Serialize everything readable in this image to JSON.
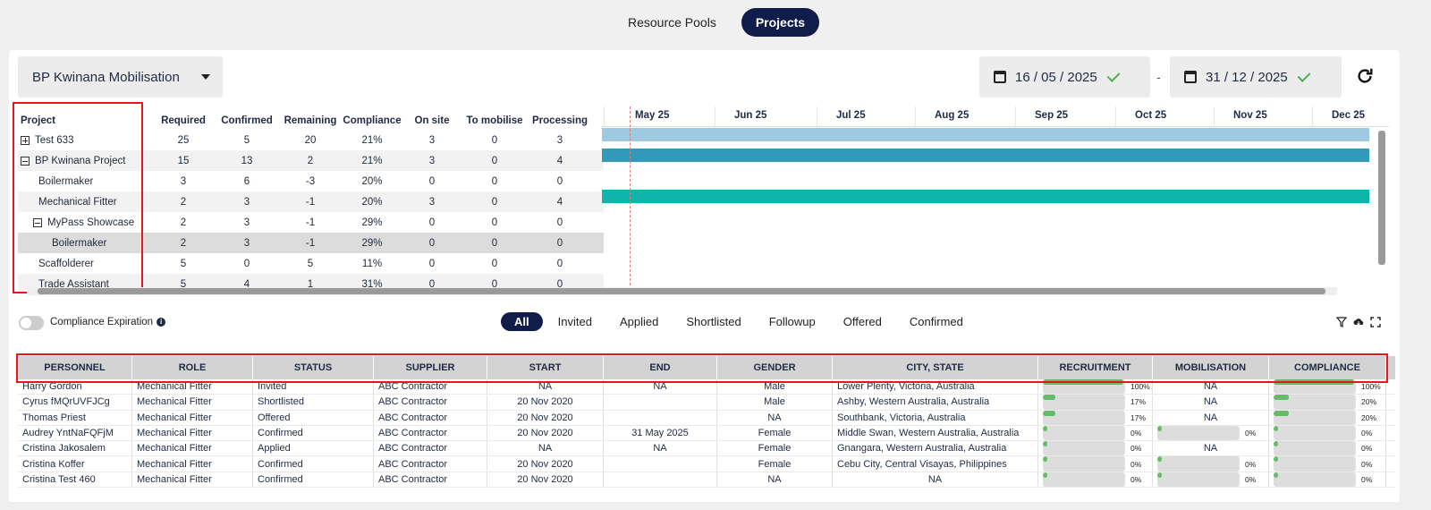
{
  "top_tabs": [
    {
      "label": "Resource Pools",
      "active": false
    },
    {
      "label": "Projects",
      "active": true
    }
  ],
  "project_select": {
    "value": "BP Kwinana Mobilisation"
  },
  "date_range": {
    "start": "16 / 05 / 2025",
    "separator": "-",
    "end": "31 / 12 / 2025"
  },
  "project_grid": {
    "columns": [
      "Project",
      "Required",
      "Confirmed",
      "Remaining",
      "Compliance",
      "On site",
      "To mobilise",
      "Processing"
    ],
    "rows": [
      {
        "name": "Test 633",
        "expander": "plus",
        "indent": 0,
        "required": "25",
        "confirmed": "5",
        "remaining": "20",
        "compliance": "21%",
        "on_site": "3",
        "to_mobilise": "0",
        "processing": "3"
      },
      {
        "name": "BP Kwinana Project",
        "expander": "minus",
        "indent": 0,
        "required": "15",
        "confirmed": "13",
        "remaining": "2",
        "compliance": "21%",
        "on_site": "3",
        "to_mobilise": "0",
        "processing": "4"
      },
      {
        "name": "Boilermaker",
        "expander": "",
        "indent": 1,
        "required": "3",
        "confirmed": "6",
        "remaining": "-3",
        "compliance": "20%",
        "on_site": "0",
        "to_mobilise": "0",
        "processing": "0"
      },
      {
        "name": "Mechanical Fitter",
        "expander": "",
        "indent": 1,
        "required": "2",
        "confirmed": "3",
        "remaining": "-1",
        "compliance": "20%",
        "on_site": "3",
        "to_mobilise": "0",
        "processing": "4"
      },
      {
        "name": "MyPass Showcase",
        "expander": "minus",
        "indent": 1,
        "required": "2",
        "confirmed": "3",
        "remaining": "-1",
        "compliance": "29%",
        "on_site": "0",
        "to_mobilise": "0",
        "processing": "0"
      },
      {
        "name": "Boilermaker",
        "expander": "",
        "indent": 2,
        "selected": true,
        "required": "2",
        "confirmed": "3",
        "remaining": "-1",
        "compliance": "29%",
        "on_site": "0",
        "to_mobilise": "0",
        "processing": "0"
      },
      {
        "name": "Scaffolderer",
        "expander": "",
        "indent": 1,
        "required": "5",
        "confirmed": "0",
        "remaining": "5",
        "compliance": "11%",
        "on_site": "0",
        "to_mobilise": "0",
        "processing": "0"
      },
      {
        "name": "Trade Assistant",
        "expander": "",
        "indent": 1,
        "required": "5",
        "confirmed": "4",
        "remaining": "1",
        "compliance": "31%",
        "on_site": "0",
        "to_mobilise": "0",
        "processing": "0"
      }
    ]
  },
  "gantt": {
    "months": [
      "May 25",
      "Jun 25",
      "Jul 25",
      "Aug 25",
      "Sep 25",
      "Oct 25",
      "Nov 25",
      "Dec 25"
    ],
    "bars": [
      {
        "row": 0,
        "color": "#9ecae1"
      },
      {
        "row": 1,
        "color": "#3399bb"
      },
      {
        "row": 3,
        "color": "#0fb5a8"
      }
    ]
  },
  "filter": {
    "toggle_label": "Compliance Expiration",
    "tabs": [
      {
        "label": "All",
        "active": true
      },
      {
        "label": "Invited",
        "active": false
      },
      {
        "label": "Applied",
        "active": false
      },
      {
        "label": "Shortlisted",
        "active": false
      },
      {
        "label": "Followup",
        "active": false
      },
      {
        "label": "Offered",
        "active": false
      },
      {
        "label": "Confirmed",
        "active": false
      }
    ]
  },
  "personnel_table": {
    "columns": [
      "PERSONNEL",
      "ROLE",
      "STATUS",
      "SUPPLIER",
      "START",
      "END",
      "GENDER",
      "CITY, STATE",
      "RECRUITMENT",
      "MOBILISATION",
      "COMPLIANCE"
    ],
    "rows": [
      {
        "personnel": "Harry Gordon",
        "role": "Mechanical Fitter",
        "status": "Invited",
        "supplier": "ABC Contractor",
        "start": "NA",
        "end": "NA",
        "gender": "Male",
        "city": "Lower Plenty, Victoria, Australia",
        "recruitment": 100,
        "recruitment_label": "100%",
        "mobilisation": null,
        "mobilisation_label": "NA",
        "compliance": 100,
        "compliance_label": "100%"
      },
      {
        "personnel": "Cyrus fMQrUVFJCg",
        "role": "Mechanical Fitter",
        "status": "Shortlisted",
        "supplier": "ABC Contractor",
        "start": "20 Nov 2020",
        "end": "",
        "gender": "Male",
        "city": "Ashby, Western Australia, Australia",
        "recruitment": 17,
        "recruitment_label": "17%",
        "mobilisation": null,
        "mobilisation_label": "NA",
        "compliance": 20,
        "compliance_label": "20%"
      },
      {
        "personnel": "Thomas Priest",
        "role": "Mechanical Fitter",
        "status": "Offered",
        "supplier": "ABC Contractor",
        "start": "20 Nov 2020",
        "end": "",
        "gender": "NA",
        "city": "Southbank, Victoria, Australia",
        "recruitment": 17,
        "recruitment_label": "17%",
        "mobilisation": null,
        "mobilisation_label": "NA",
        "compliance": 20,
        "compliance_label": "20%"
      },
      {
        "personnel": "Audrey YntNaFQFjM",
        "role": "Mechanical Fitter",
        "status": "Confirmed",
        "supplier": "ABC Contractor",
        "start": "20 Nov 2020",
        "end": "31 May 2025",
        "gender": "Female",
        "city": "Middle Swan, Western Australia, Australia",
        "recruitment": 0,
        "recruitment_label": "0%",
        "mobilisation": 0,
        "mobilisation_label": "0%",
        "compliance": 0,
        "compliance_label": "0%"
      },
      {
        "personnel": "Cristina Jakosalem",
        "role": "Mechanical Fitter",
        "status": "Applied",
        "supplier": "ABC Contractor",
        "start": "NA",
        "end": "NA",
        "gender": "Female",
        "city": "Gnangara, Western Australia, Australia",
        "recruitment": 0,
        "recruitment_label": "0%",
        "mobilisation": null,
        "mobilisation_label": "NA",
        "compliance": 0,
        "compliance_label": "0%"
      },
      {
        "personnel": "Cristina Koffer",
        "role": "Mechanical Fitter",
        "status": "Confirmed",
        "supplier": "ABC Contractor",
        "start": "20 Nov 2020",
        "end": "",
        "gender": "Female",
        "city": "Cebu City, Central Visayas, Philippines",
        "recruitment": 0,
        "recruitment_label": "0%",
        "mobilisation": 0,
        "mobilisation_label": "0%",
        "compliance": 0,
        "compliance_label": "0%"
      },
      {
        "personnel": "Cristina Test 460",
        "role": "Mechanical Fitter",
        "status": "Confirmed",
        "supplier": "ABC Contractor",
        "start": "20 Nov 2020",
        "end": "",
        "gender": "NA",
        "city": "NA",
        "recruitment": 0,
        "recruitment_label": "0%",
        "mobilisation": 0,
        "mobilisation_label": "0%",
        "compliance": 0,
        "compliance_label": "0%"
      }
    ]
  }
}
